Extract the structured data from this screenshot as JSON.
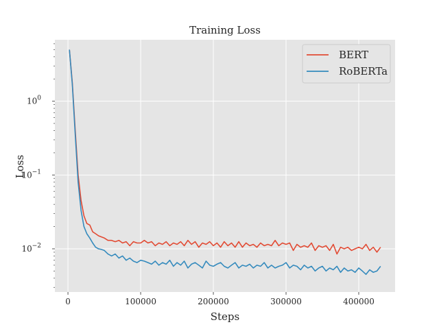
{
  "chart_data": {
    "type": "line",
    "title": "Training Loss",
    "xlabel": "Steps",
    "ylabel": "Loss",
    "yscale": "log",
    "xlim": [
      -18000,
      450000
    ],
    "ylim": [
      0.0026,
      6.8
    ],
    "grid": true,
    "legend_position": "top-right",
    "x_ticks": [
      {
        "value": 0,
        "label": "0"
      },
      {
        "value": 100000,
        "label": "100000"
      },
      {
        "value": 200000,
        "label": "200000"
      },
      {
        "value": 300000,
        "label": "300000"
      },
      {
        "value": 400000,
        "label": "400000"
      }
    ],
    "y_ticks": [
      {
        "value": 0.01,
        "base": "10",
        "exp": "−2"
      },
      {
        "value": 0.1,
        "base": "10",
        "exp": "−1"
      },
      {
        "value": 1,
        "base": "10",
        "exp": "0"
      }
    ],
    "colors": {
      "background": "#e5e5e5",
      "grid": "#ffffff",
      "bert": "#e24a33",
      "roberta": "#348abd"
    },
    "series": [
      {
        "name": "BERT",
        "color": "#e24a33",
        "x": [
          2000,
          6000,
          10000,
          14000,
          18000,
          22000,
          26000,
          30000,
          34000,
          38000,
          42000,
          46000,
          50000,
          55000,
          60000,
          65000,
          70000,
          75000,
          80000,
          85000,
          90000,
          95000,
          100000,
          105000,
          110000,
          115000,
          120000,
          125000,
          130000,
          135000,
          140000,
          145000,
          150000,
          155000,
          160000,
          165000,
          170000,
          175000,
          180000,
          185000,
          190000,
          195000,
          200000,
          205000,
          210000,
          215000,
          220000,
          225000,
          230000,
          235000,
          240000,
          245000,
          250000,
          255000,
          260000,
          265000,
          270000,
          275000,
          280000,
          285000,
          290000,
          295000,
          300000,
          305000,
          310000,
          315000,
          320000,
          325000,
          330000,
          335000,
          340000,
          345000,
          350000,
          355000,
          360000,
          365000,
          370000,
          375000,
          380000,
          385000,
          390000,
          395000,
          400000,
          405000,
          410000,
          415000,
          420000,
          425000,
          430000
        ],
        "values": [
          5.0,
          1.8,
          0.4,
          0.1,
          0.045,
          0.028,
          0.022,
          0.021,
          0.017,
          0.016,
          0.015,
          0.0145,
          0.014,
          0.013,
          0.013,
          0.0125,
          0.013,
          0.012,
          0.0125,
          0.011,
          0.0125,
          0.012,
          0.012,
          0.013,
          0.012,
          0.0125,
          0.011,
          0.012,
          0.0115,
          0.0125,
          0.011,
          0.012,
          0.0115,
          0.0125,
          0.011,
          0.013,
          0.0115,
          0.0125,
          0.0105,
          0.012,
          0.0115,
          0.0125,
          0.011,
          0.012,
          0.0105,
          0.0125,
          0.011,
          0.012,
          0.0105,
          0.0125,
          0.0105,
          0.012,
          0.011,
          0.0115,
          0.0105,
          0.012,
          0.011,
          0.0115,
          0.011,
          0.013,
          0.011,
          0.012,
          0.0115,
          0.012,
          0.0095,
          0.0115,
          0.0105,
          0.011,
          0.0105,
          0.012,
          0.0095,
          0.011,
          0.0105,
          0.011,
          0.0095,
          0.0115,
          0.0085,
          0.0105,
          0.01,
          0.0105,
          0.0095,
          0.01,
          0.0105,
          0.01,
          0.0115,
          0.0095,
          0.0105,
          0.009,
          0.0105
        ]
      },
      {
        "name": "RoBERTa",
        "color": "#348abd",
        "x": [
          2000,
          6000,
          10000,
          14000,
          18000,
          22000,
          26000,
          30000,
          34000,
          38000,
          42000,
          46000,
          50000,
          55000,
          60000,
          65000,
          70000,
          75000,
          80000,
          85000,
          90000,
          95000,
          100000,
          105000,
          110000,
          115000,
          120000,
          125000,
          130000,
          135000,
          140000,
          145000,
          150000,
          155000,
          160000,
          165000,
          170000,
          175000,
          180000,
          185000,
          190000,
          195000,
          200000,
          205000,
          210000,
          215000,
          220000,
          225000,
          230000,
          235000,
          240000,
          245000,
          250000,
          255000,
          260000,
          265000,
          270000,
          275000,
          280000,
          285000,
          290000,
          295000,
          300000,
          305000,
          310000,
          315000,
          320000,
          325000,
          330000,
          335000,
          340000,
          345000,
          350000,
          355000,
          360000,
          365000,
          370000,
          375000,
          380000,
          385000,
          390000,
          395000,
          400000,
          405000,
          410000,
          415000,
          420000,
          425000,
          430000
        ],
        "values": [
          5.0,
          1.7,
          0.35,
          0.08,
          0.033,
          0.02,
          0.016,
          0.014,
          0.012,
          0.0105,
          0.01,
          0.0098,
          0.0095,
          0.0085,
          0.008,
          0.0085,
          0.0075,
          0.008,
          0.007,
          0.0075,
          0.0068,
          0.0065,
          0.007,
          0.0068,
          0.0065,
          0.0062,
          0.0068,
          0.006,
          0.0065,
          0.0062,
          0.007,
          0.0058,
          0.0065,
          0.006,
          0.0068,
          0.0055,
          0.0062,
          0.0065,
          0.006,
          0.0055,
          0.0068,
          0.006,
          0.0058,
          0.0062,
          0.0065,
          0.0058,
          0.0055,
          0.006,
          0.0065,
          0.0055,
          0.006,
          0.0058,
          0.0062,
          0.0055,
          0.006,
          0.0058,
          0.0065,
          0.0055,
          0.006,
          0.0055,
          0.0058,
          0.006,
          0.0065,
          0.0055,
          0.006,
          0.0058,
          0.0052,
          0.006,
          0.0055,
          0.0058,
          0.005,
          0.0055,
          0.0058,
          0.005,
          0.0055,
          0.0052,
          0.0058,
          0.0048,
          0.0055,
          0.005,
          0.0052,
          0.0048,
          0.0055,
          0.005,
          0.0045,
          0.0052,
          0.0048,
          0.005,
          0.0058
        ]
      }
    ]
  }
}
